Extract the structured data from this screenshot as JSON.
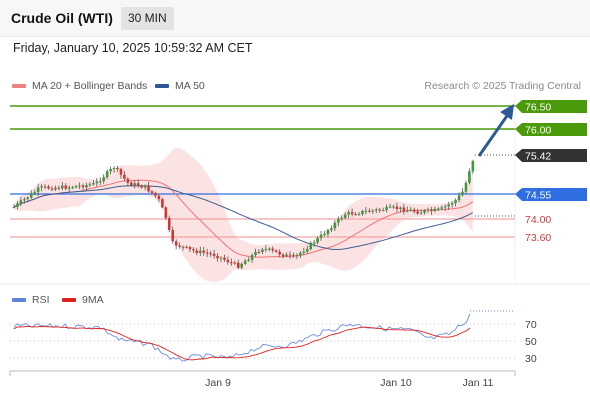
{
  "header": {
    "title": "Crude Oil (WTI)",
    "timeframe": "30 MIN"
  },
  "datetime": "Friday, January 10, 2025 10:59:32 AM CET",
  "legend": {
    "ma20": {
      "label": "MA 20 + Bollinger Bands",
      "color": "#f08080"
    },
    "ma50": {
      "label": "MA 50",
      "color": "#2d5a96"
    }
  },
  "credit": "Research © 2025 Trading Central",
  "rsi_legend": {
    "rsi": {
      "label": "RSI",
      "color": "#5b84d6"
    },
    "ma": {
      "label": "9MA",
      "color": "#e02020"
    }
  },
  "levels": {
    "r2": {
      "value": "76.50",
      "color": "#4a9a0a"
    },
    "r1": {
      "value": "76.00",
      "color": "#4a9a0a"
    },
    "last": {
      "value": "75.42",
      "color": "#333333"
    },
    "pivot": {
      "value": "74.55",
      "color": "#2f6ee0"
    },
    "s1": {
      "value": "74.00",
      "color": "#d33b3b"
    },
    "s2": {
      "value": "73.60",
      "color": "#d33b3b"
    }
  },
  "rsi_ticks": [
    "70",
    "50",
    "30"
  ],
  "x_labels": [
    "Jan 9",
    "Jan 10",
    "Jan 11"
  ]
}
